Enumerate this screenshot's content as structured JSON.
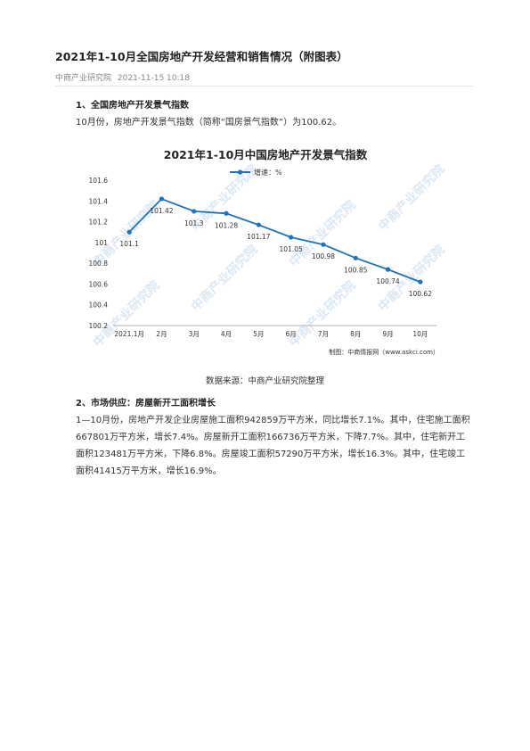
{
  "article": {
    "title": "2021年1-10月全国房地产开发经营和销售情况（附图表）",
    "source_name": "中商产业研究院",
    "datetime": "2021-11-15 10:18"
  },
  "section1": {
    "heading": "1、全国房地产开发景气指数",
    "paragraph": "10月份，房地产开发景气指数（简称“国房景气指数”）为100.62。"
  },
  "chart_data": {
    "type": "line",
    "title": "2021年1-10月中国房地产开发景气指数",
    "categories": [
      "2021.1月",
      "2月",
      "3月",
      "4月",
      "5月",
      "6月",
      "7月",
      "8月",
      "9月",
      "10月"
    ],
    "series": [
      {
        "name": "增速：%",
        "values": [
          101.1,
          101.42,
          101.3,
          101.28,
          101.17,
          101.05,
          100.98,
          100.85,
          100.74,
          100.62
        ]
      }
    ],
    "data_labels": [
      "101.1",
      "101.42",
      "101.3",
      "101.28",
      "101.17",
      "101.05",
      "100.98",
      "100.85",
      "100.74",
      "100.62"
    ],
    "y_ticks": [
      "101.6",
      "101.4",
      "101.2",
      "101",
      "100.8",
      "100.6",
      "100.4",
      "100.2"
    ],
    "ylim": [
      100.2,
      101.6
    ],
    "grid": false,
    "legend_placement": "top",
    "credit": "制图：中商情报网（www.askci.com）",
    "watermark": "中商产业研究院",
    "line_color": "#1e73be"
  },
  "chart_caption": "数据来源：中商产业研究院整理",
  "section2": {
    "heading": "2、市场供应：房屋新开工面积增长",
    "paragraph": "1—10月份，房地产开发企业房屋施工面积942859万平方米，同比增长7.1%。其中，住宅施工面积667801万平方米，增长7.4%。房屋新开工面积166736万平方米，下降7.7%。其中，住宅新开工面积123481万平方米，下降6.8%。房屋竣工面积57290万平方米，增长16.3%。其中，住宅竣工面积41415万平方米，增长16.9%。"
  }
}
